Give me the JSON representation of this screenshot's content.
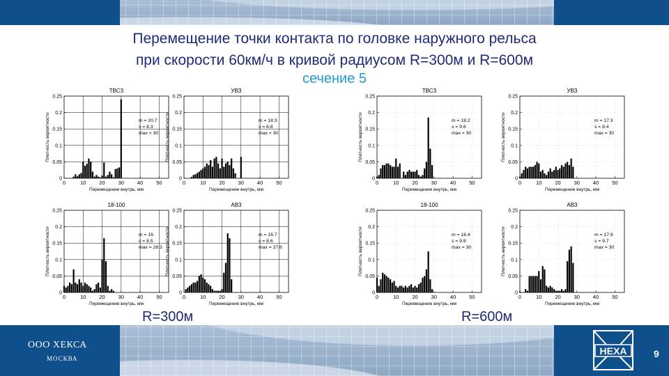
{
  "header": {
    "title_line1": "Перемещение точки контакта  по головке наружного рельса",
    "title_line2": "при скорости 60км/ч в кривой радиусом R=300м и R=600м",
    "section": "сечение 5"
  },
  "labels": {
    "left": "R=300м",
    "right": "R=600м"
  },
  "footer": {
    "company": "ООО ХЕКСА",
    "city": "МОСКВА",
    "logo_text": "HEXA",
    "page": "9"
  },
  "colors": {
    "dark_blue": "#0f4f8c",
    "title": "#1f2a78",
    "section": "#1e9bd7"
  },
  "chart_data": [
    {
      "type": "bar",
      "group": "R=300м",
      "title": "ТВСЗ",
      "xlabel": "Перемещение внутрь, мм",
      "ylabel": "Плотность вероятности",
      "xlim": [
        0,
        55
      ],
      "ylim": [
        0,
        0.25
      ],
      "xticks": [
        0,
        10,
        20,
        30,
        40,
        50
      ],
      "yticks": [
        0,
        0.05,
        0.1,
        0.15,
        0.2,
        0.25
      ],
      "grid": true,
      "stats": [
        "m = 20.7",
        "s = 8.3",
        "max = 30"
      ],
      "x": [
        5,
        6,
        7,
        8,
        9,
        10,
        11,
        12,
        13,
        14,
        15,
        16,
        17,
        18,
        19,
        20,
        21,
        22,
        23,
        24,
        25,
        26,
        27,
        28,
        29,
        30
      ],
      "values": [
        0.005,
        0.012,
        0.006,
        0.012,
        0.016,
        0.05,
        0.038,
        0.044,
        0.06,
        0.05,
        0.02,
        0.005,
        0.01,
        0.005,
        0.003,
        0.008,
        0.048,
        0.005,
        0.01,
        0.02,
        0.012,
        0.003,
        0.028,
        0.03,
        0.033,
        0.24
      ]
    },
    {
      "type": "bar",
      "group": "R=300м",
      "title": "УВЗ",
      "xlabel": "Перемещение внутрь, мм",
      "ylabel": "Плотность вероятности",
      "xlim": [
        0,
        55
      ],
      "ylim": [
        0,
        0.25
      ],
      "xticks": [
        0,
        10,
        20,
        30,
        40,
        50
      ],
      "yticks": [
        0,
        0.05,
        0.1,
        0.15,
        0.2,
        0.25
      ],
      "grid": true,
      "stats": [
        "m = 18.3",
        "s = 6.8",
        "max = 30"
      ],
      "x": [
        4,
        5,
        6,
        7,
        8,
        9,
        10,
        11,
        12,
        13,
        14,
        15,
        16,
        17,
        18,
        19,
        20,
        21,
        22,
        23,
        24,
        25,
        26,
        27,
        30
      ],
      "values": [
        0.004,
        0.01,
        0.012,
        0.016,
        0.02,
        0.025,
        0.03,
        0.035,
        0.045,
        0.04,
        0.055,
        0.035,
        0.06,
        0.065,
        0.045,
        0.03,
        0.06,
        0.035,
        0.045,
        0.05,
        0.04,
        0.06,
        0.03,
        0.015,
        0.065
      ]
    },
    {
      "type": "bar",
      "group": "R=300м",
      "title": "18-100",
      "xlabel": "Перемещение внутрь, мм",
      "ylabel": "Плотность вероятности",
      "xlim": [
        0,
        55
      ],
      "ylim": [
        0,
        0.25
      ],
      "xticks": [
        0,
        10,
        20,
        30,
        40,
        50
      ],
      "yticks": [
        0,
        0.05,
        0.1,
        0.15,
        0.2,
        0.25
      ],
      "grid": true,
      "stats": [
        "m = 16",
        "s = 8.5",
        "max = 28.3"
      ],
      "x": [
        0,
        1,
        2,
        3,
        4,
        5,
        6,
        7,
        8,
        9,
        10,
        11,
        12,
        13,
        14,
        15,
        16,
        17,
        18,
        19,
        20,
        21,
        22,
        23,
        24,
        25,
        26
      ],
      "values": [
        0.02,
        0.015,
        0.02,
        0.03,
        0.025,
        0.07,
        0.03,
        0.025,
        0.04,
        0.03,
        0.02,
        0.03,
        0.025,
        0.02,
        0.015,
        0.005,
        0.01,
        0.025,
        0.03,
        0.015,
        0.1,
        0.165,
        0.095,
        0.02,
        0.005,
        0.01,
        0.005
      ]
    },
    {
      "type": "bar",
      "group": "R=300м",
      "title": "АВЗ",
      "xlabel": "Перемещение внутрь, мм",
      "ylabel": "Плотность вероятности",
      "xlim": [
        0,
        55
      ],
      "ylim": [
        0,
        0.25
      ],
      "xticks": [
        0,
        10,
        20,
        30,
        40,
        50
      ],
      "yticks": [
        0,
        0.05,
        0.1,
        0.15,
        0.2,
        0.25
      ],
      "grid": true,
      "stats": [
        "m = 16.7",
        "s = 8.6",
        "max = 27.6"
      ],
      "x": [
        1,
        2,
        3,
        4,
        5,
        6,
        7,
        8,
        9,
        10,
        11,
        12,
        13,
        14,
        15,
        16,
        17,
        18,
        19,
        20,
        21,
        22,
        23,
        24,
        25
      ],
      "values": [
        0.01,
        0.015,
        0.02,
        0.025,
        0.03,
        0.03,
        0.035,
        0.05,
        0.055,
        0.045,
        0.04,
        0.03,
        0.025,
        0.02,
        0.01,
        0.005,
        0.005,
        0.005,
        0.005,
        0.01,
        0.06,
        0.09,
        0.18,
        0.165,
        0.04
      ]
    },
    {
      "type": "bar",
      "group": "R=600м",
      "title": "ТВСЗ",
      "xlabel": "Перемещение внутрь, мм",
      "ylabel": "Плотность вероятности",
      "xlim": [
        0,
        55
      ],
      "ylim": [
        0,
        0.25
      ],
      "xticks": [
        0,
        10,
        20,
        30,
        40,
        50
      ],
      "yticks": [
        0,
        0.05,
        0.1,
        0.15,
        0.2,
        0.25
      ],
      "grid": false,
      "stats": [
        "m = 18.2",
        "s = 9.6",
        "max = 30"
      ],
      "x": [
        0,
        1,
        2,
        3,
        4,
        5,
        6,
        7,
        8,
        9,
        10,
        11,
        12,
        14,
        15,
        16,
        17,
        18,
        19,
        20,
        21,
        22,
        23,
        24,
        25,
        26,
        27,
        28,
        29
      ],
      "values": [
        0.005,
        0.01,
        0.03,
        0.04,
        0.04,
        0.045,
        0.045,
        0.04,
        0.035,
        0.035,
        0.06,
        0.035,
        0.045,
        0.02,
        0.01,
        0.02,
        0.025,
        0.02,
        0.02,
        0.02,
        0.025,
        0.01,
        0.005,
        0.01,
        0.03,
        0.05,
        0.185,
        0.09,
        0.04
      ]
    },
    {
      "type": "bar",
      "group": "R=600м",
      "title": "УВЗ",
      "xlabel": "Перемещение внутрь, мм",
      "ylabel": "Плотность вероятности",
      "xlim": [
        0,
        55
      ],
      "ylim": [
        0,
        0.25
      ],
      "xticks": [
        0,
        10,
        20,
        30,
        40,
        50
      ],
      "yticks": [
        0,
        0.05,
        0.1,
        0.15,
        0.2,
        0.25
      ],
      "grid": false,
      "stats": [
        "m = 17.3",
        "s = 8.4",
        "max = 30"
      ],
      "x": [
        0,
        1,
        2,
        3,
        4,
        5,
        6,
        7,
        8,
        9,
        10,
        11,
        12,
        13,
        14,
        15,
        16,
        17,
        18,
        19,
        20,
        21,
        22,
        23,
        24,
        25,
        26,
        27,
        28
      ],
      "values": [
        0.005,
        0.015,
        0.025,
        0.035,
        0.03,
        0.035,
        0.035,
        0.035,
        0.04,
        0.05,
        0.045,
        0.02,
        0.025,
        0.015,
        0.01,
        0.02,
        0.03,
        0.02,
        0.025,
        0.035,
        0.025,
        0.03,
        0.04,
        0.035,
        0.045,
        0.05,
        0.04,
        0.06,
        0.035
      ]
    },
    {
      "type": "bar",
      "group": "R=600м",
      "title": "18-100",
      "xlabel": "Перемещение внутрь, мм",
      "ylabel": "Плотность вероятности",
      "xlim": [
        0,
        55
      ],
      "ylim": [
        0,
        0.25
      ],
      "xticks": [
        0,
        10,
        20,
        30,
        40,
        50
      ],
      "yticks": [
        0,
        0.05,
        0.1,
        0.15,
        0.2,
        0.25
      ],
      "grid": false,
      "stats": [
        "m = 16.4",
        "s = 9.8",
        "max = 30"
      ],
      "x": [
        0,
        1,
        2,
        3,
        4,
        5,
        6,
        7,
        8,
        9,
        10,
        11,
        12,
        13,
        14,
        15,
        16,
        17,
        18,
        19,
        20,
        21,
        22,
        23,
        24,
        25,
        26,
        27,
        28,
        29
      ],
      "values": [
        0.045,
        0.02,
        0.04,
        0.06,
        0.055,
        0.05,
        0.045,
        0.04,
        0.03,
        0.035,
        0.02,
        0.015,
        0.02,
        0.02,
        0.015,
        0.02,
        0.015,
        0.02,
        0.025,
        0.015,
        0.02,
        0.015,
        0.025,
        0.03,
        0.045,
        0.05,
        0.07,
        0.125,
        0.04,
        0.01
      ]
    },
    {
      "type": "bar",
      "group": "R=600м",
      "title": "АВЗ",
      "xlabel": "Перемещение внутрь, мм",
      "ylabel": "Плотность вероятности",
      "xlim": [
        0,
        55
      ],
      "ylim": [
        0,
        0.25
      ],
      "xticks": [
        0,
        10,
        20,
        30,
        40,
        50
      ],
      "yticks": [
        0,
        0.05,
        0.1,
        0.15,
        0.2,
        0.25
      ],
      "grid": false,
      "stats": [
        "m = 17.9",
        "s = 9.7",
        "max = 30"
      ],
      "x": [
        0,
        3,
        4,
        5,
        6,
        7,
        8,
        9,
        10,
        11,
        12,
        13,
        14,
        15,
        16,
        17,
        18,
        19,
        20,
        21,
        22,
        23,
        24,
        25,
        26,
        27,
        28
      ],
      "values": [
        0.003,
        0.01,
        0.005,
        0.05,
        0.05,
        0.05,
        0.05,
        0.05,
        0.065,
        0.04,
        0.08,
        0.07,
        0.02,
        0.015,
        0.02,
        0.015,
        0.01,
        0.005,
        0.005,
        0.005,
        0.01,
        0.005,
        0.01,
        0.095,
        0.13,
        0.14,
        0.09
      ]
    }
  ]
}
